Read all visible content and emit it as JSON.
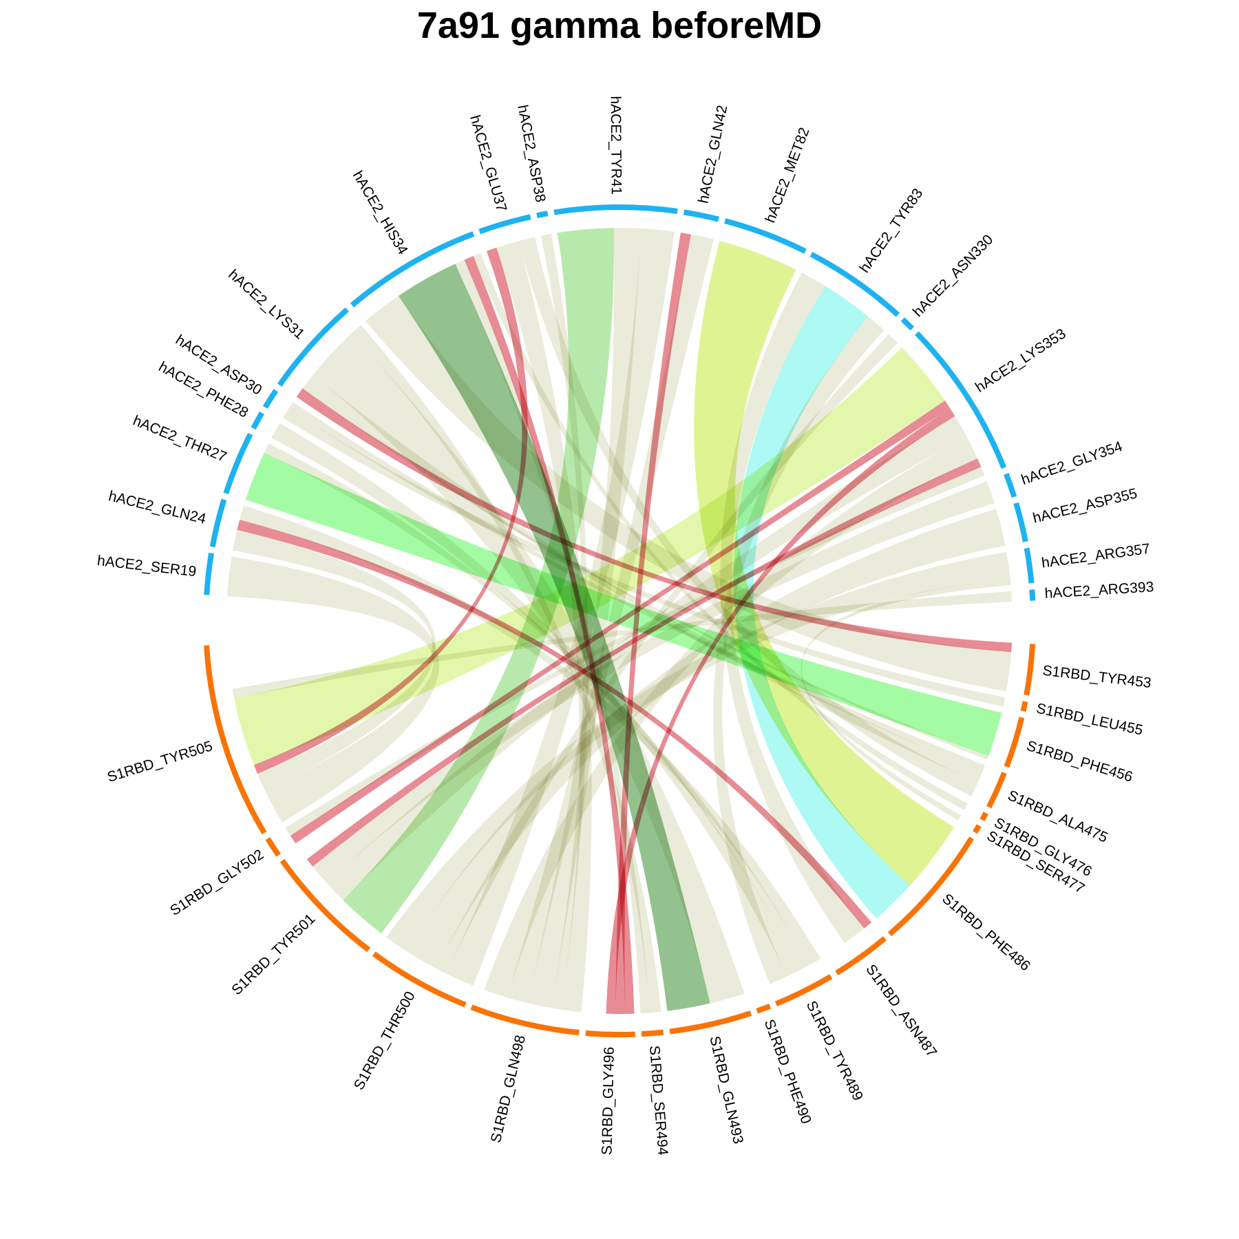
{
  "chart_data": {
    "type": "chord",
    "title": "7a91 gamma beforeMD",
    "groups": [
      {
        "name": "hACE2",
        "color": "#1EB2F0"
      },
      {
        "name": "S1RBD",
        "color": "#F97306"
      }
    ],
    "sectors": [
      {
        "name": "hACE2_SER19",
        "group": "hACE2",
        "weight": 1.9
      },
      {
        "name": "hACE2_GLN24",
        "group": "hACE2",
        "weight": 2.2
      },
      {
        "name": "hACE2_THR27",
        "group": "hACE2",
        "weight": 2.9
      },
      {
        "name": "hACE2_PHE28",
        "group": "hACE2",
        "weight": 0.8
      },
      {
        "name": "hACE2_ASP30",
        "group": "hACE2",
        "weight": 0.9
      },
      {
        "name": "hACE2_LYS31",
        "group": "hACE2",
        "weight": 4.6
      },
      {
        "name": "hACE2_HIS34",
        "group": "hACE2",
        "weight": 6.4
      },
      {
        "name": "hACE2_GLU37",
        "group": "hACE2",
        "weight": 2.4
      },
      {
        "name": "hACE2_ASP38",
        "group": "hACE2",
        "weight": 0.5
      },
      {
        "name": "hACE2_TYR41",
        "group": "hACE2",
        "weight": 5.6
      },
      {
        "name": "hACE2_GLN42",
        "group": "hACE2",
        "weight": 1.6
      },
      {
        "name": "hACE2_MET82",
        "group": "hACE2",
        "weight": 3.9
      },
      {
        "name": "hACE2_TYR83",
        "group": "hACE2",
        "weight": 4.8
      },
      {
        "name": "hACE2_ASN330",
        "group": "hACE2",
        "weight": 0.6
      },
      {
        "name": "hACE2_LYS353",
        "group": "hACE2",
        "weight": 7.3
      },
      {
        "name": "hACE2_GLY354",
        "group": "hACE2",
        "weight": 1.1
      },
      {
        "name": "hACE2_ASP355",
        "group": "hACE2",
        "weight": 1.8
      },
      {
        "name": "hACE2_ARG357",
        "group": "hACE2",
        "weight": 1.6
      },
      {
        "name": "hACE2_ARG393",
        "group": "hACE2",
        "weight": 0.5
      },
      {
        "name": "S1RBD_TYR453",
        "group": "S1RBD",
        "weight": 2.6
      },
      {
        "name": "S1RBD_LEU455",
        "group": "S1RBD",
        "weight": 0.5
      },
      {
        "name": "S1RBD_PHE456",
        "group": "S1RBD",
        "weight": 2.6
      },
      {
        "name": "S1RBD_ALA475",
        "group": "S1RBD",
        "weight": 1.9
      },
      {
        "name": "S1RBD_GLY476",
        "group": "S1RBD",
        "weight": 0.4
      },
      {
        "name": "S1RBD_SER477",
        "group": "S1RBD",
        "weight": 0.4
      },
      {
        "name": "S1RBD_PHE486",
        "group": "S1RBD",
        "weight": 6.4
      },
      {
        "name": "S1RBD_ASN487",
        "group": "S1RBD",
        "weight": 3.0
      },
      {
        "name": "S1RBD_TYR489",
        "group": "S1RBD",
        "weight": 3.1
      },
      {
        "name": "S1RBD_PHE490",
        "group": "S1RBD",
        "weight": 0.7
      },
      {
        "name": "S1RBD_GLN493",
        "group": "S1RBD",
        "weight": 4.2
      },
      {
        "name": "S1RBD_SER494",
        "group": "S1RBD",
        "weight": 1.1
      },
      {
        "name": "S1RBD_GLY496",
        "group": "S1RBD",
        "weight": 2.5
      },
      {
        "name": "S1RBD_GLN498",
        "group": "S1RBD",
        "weight": 5.6
      },
      {
        "name": "S1RBD_THR500",
        "group": "S1RBD",
        "weight": 5.3
      },
      {
        "name": "S1RBD_TYR501",
        "group": "S1RBD",
        "weight": 6.3
      },
      {
        "name": "S1RBD_GLY502",
        "group": "S1RBD",
        "weight": 1.0
      },
      {
        "name": "S1RBD_TYR505",
        "group": "S1RBD",
        "weight": 10.0
      }
    ],
    "links": [
      {
        "source": "hACE2_SER19",
        "target": "S1RBD_TYR505",
        "value": 1.9,
        "color": "#E4E5CF"
      },
      {
        "source": "hACE2_GLN24",
        "target": "S1RBD_TYR505",
        "value": 1.0,
        "color": "#E4E5CF"
      },
      {
        "source": "hACE2_GLN24",
        "target": "S1RBD_ASN487",
        "value": 0.5,
        "color": "#DE5E6B"
      },
      {
        "source": "hACE2_GLN24",
        "target": "S1RBD_TYR489",
        "value": 0.7,
        "color": "#E4E5CF"
      },
      {
        "source": "hACE2_THR27",
        "target": "S1RBD_PHE456",
        "value": 2.4,
        "color": "#7FFB7F"
      },
      {
        "source": "hACE2_THR27",
        "target": "S1RBD_TYR489",
        "value": 0.5,
        "color": "#E4E5CF"
      },
      {
        "source": "hACE2_PHE28",
        "target": "S1RBD_TYR489",
        "value": 0.8,
        "color": "#E4E5CF"
      },
      {
        "source": "hACE2_ASP30",
        "target": "S1RBD_LEU455",
        "value": 0.5,
        "color": "#E4E5CF"
      },
      {
        "source": "hACE2_ASP30",
        "target": "S1RBD_ALA475",
        "value": 0.4,
        "color": "#E4E5CF"
      },
      {
        "source": "hACE2_LYS31",
        "target": "S1RBD_TYR453",
        "value": 0.5,
        "color": "#DE5E6B"
      },
      {
        "source": "hACE2_LYS31",
        "target": "S1RBD_PHE456",
        "value": 0.2,
        "color": "#E4E5CF"
      },
      {
        "source": "hACE2_LYS31",
        "target": "S1RBD_ALA475",
        "value": 0.6,
        "color": "#E4E5CF"
      },
      {
        "source": "hACE2_LYS31",
        "target": "S1RBD_GLN493",
        "value": 2.7,
        "color": "#E4E5CF"
      },
      {
        "source": "hACE2_LYS31",
        "target": "S1RBD_SER494",
        "value": 0.6,
        "color": "#E4E5CF"
      },
      {
        "source": "hACE2_HIS34",
        "target": "S1RBD_TYR453",
        "value": 2.1,
        "color": "#E4E5CF"
      },
      {
        "source": "hACE2_HIS34",
        "target": "S1RBD_GLN493",
        "value": 3.3,
        "color": "#6AAB64"
      },
      {
        "source": "hACE2_HIS34",
        "target": "S1RBD_SER494",
        "value": 0.5,
        "color": "#E4E5CF"
      },
      {
        "source": "hACE2_HIS34",
        "target": "S1RBD_GLY496",
        "value": 0.5,
        "color": "#DE5E6B"
      },
      {
        "source": "hACE2_GLU37",
        "target": "S1RBD_TYR505",
        "value": 0.5,
        "color": "#DE5E6B"
      },
      {
        "source": "hACE2_GLU37",
        "target": "S1RBD_GLN498",
        "value": 1.1,
        "color": "#E4E5CF"
      },
      {
        "source": "hACE2_GLU37",
        "target": "S1RBD_ALA475",
        "value": 0.8,
        "color": "#E4E5CF"
      },
      {
        "source": "hACE2_ASP38",
        "target": "S1RBD_GLN498",
        "value": 0.5,
        "color": "#E4E5CF"
      },
      {
        "source": "hACE2_TYR41",
        "target": "S1RBD_TYR501",
        "value": 2.7,
        "color": "#9CE08C"
      },
      {
        "source": "hACE2_TYR41",
        "target": "S1RBD_GLN498",
        "value": 1.3,
        "color": "#E4E5CF"
      },
      {
        "source": "hACE2_TYR41",
        "target": "S1RBD_THR500",
        "value": 1.6,
        "color": "#E4E5CF"
      },
      {
        "source": "hACE2_GLN42",
        "target": "S1RBD_GLY496",
        "value": 0.5,
        "color": "#DE5E6B"
      },
      {
        "source": "hACE2_GLN42",
        "target": "S1RBD_GLN498",
        "value": 1.1,
        "color": "#E4E5CF"
      },
      {
        "source": "hACE2_MET82",
        "target": "S1RBD_PHE486",
        "value": 3.9,
        "color": "#D4EE6A"
      },
      {
        "source": "hACE2_TYR83",
        "target": "S1RBD_ASN487",
        "value": 1.3,
        "color": "#E4E5CF"
      },
      {
        "source": "hACE2_TYR83",
        "target": "S1RBD_PHE486",
        "value": 2.5,
        "color": "#8EF7F0"
      },
      {
        "source": "hACE2_TYR83",
        "target": "S1RBD_TYR489",
        "value": 1.0,
        "color": "#E4E5CF"
      },
      {
        "source": "hACE2_ASN330",
        "target": "S1RBD_THR500",
        "value": 0.6,
        "color": "#E4E5CF"
      },
      {
        "source": "hACE2_LYS353",
        "target": "S1RBD_TYR505",
        "value": 3.7,
        "color": "#D7F48A"
      },
      {
        "source": "hACE2_LYS353",
        "target": "S1RBD_GLY502",
        "value": 0.5,
        "color": "#DE5E6B"
      },
      {
        "source": "hACE2_LYS353",
        "target": "S1RBD_GLY496",
        "value": 0.5,
        "color": "#DE5E6B"
      },
      {
        "source": "hACE2_LYS353",
        "target": "S1RBD_TYR501",
        "value": 1.3,
        "color": "#E4E5CF"
      },
      {
        "source": "hACE2_LYS353",
        "target": "S1RBD_GLN498",
        "value": 1.3,
        "color": "#E4E5CF"
      },
      {
        "source": "hACE2_GLY354",
        "target": "S1RBD_TYR501",
        "value": 1.1,
        "color": "#E4E5CF"
      },
      {
        "source": "hACE2_ASP355",
        "target": "S1RBD_THR500",
        "value": 1.8,
        "color": "#E4E5CF"
      },
      {
        "source": "hACE2_ARG357",
        "target": "S1RBD_THR500",
        "value": 1.3,
        "color": "#E4E5CF"
      },
      {
        "source": "hACE2_ARG357",
        "target": "S1RBD_SER477",
        "value": 0.3,
        "color": "#E4E5CF"
      },
      {
        "source": "hACE2_ARG393",
        "target": "S1RBD_TYR505",
        "value": 0.5,
        "color": "#E4E5CF"
      },
      {
        "source": "hACE2_LYS353",
        "target": "S1RBD_TYR501",
        "value": 0.5,
        "color": "#DE5E6B"
      },
      {
        "source": "hACE2_HIS34",
        "target": "S1RBD_GLY476",
        "value": 0.4,
        "color": "#E4E5CF"
      },
      {
        "source": "hACE2_TYR41",
        "target": "S1RBD_TYR501",
        "value": 0.0,
        "color": "#E4E5CF"
      },
      {
        "source": "hACE2_LYS353",
        "target": "S1RBD_GLY502",
        "value": 0.5,
        "color": "#E4E5CF"
      },
      {
        "source": "hACE2_GLY354",
        "target": "S1RBD_TYR505",
        "value": 0.0,
        "color": "#E4E5CF"
      },
      {
        "source": "hACE2_ARG357",
        "target": "S1RBD_TYR505",
        "value": 0.0,
        "color": "#E4E5CF"
      },
      {
        "source": "hACE2_ASP355",
        "target": "S1RBD_GLY502",
        "value": 0.0,
        "color": "#E4E5CF"
      }
    ]
  }
}
